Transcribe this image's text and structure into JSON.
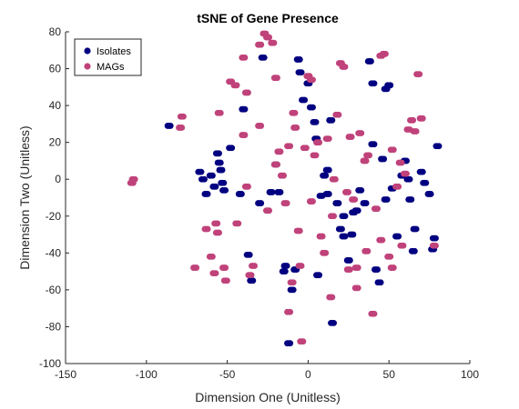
{
  "chart_data": {
    "type": "scatter",
    "title": "tSNE of Gene Presence",
    "xlabel": "Dimension One (Unitless)",
    "ylabel": "Dimension Two (Unitless)",
    "xlim": [
      -150,
      100
    ],
    "ylim": [
      -100,
      80
    ],
    "xticks": [
      -150,
      -100,
      -50,
      0,
      50,
      100
    ],
    "yticks": [
      -100,
      -80,
      -60,
      -40,
      -20,
      0,
      20,
      40,
      60,
      80
    ],
    "xtick_labels": [
      "-150",
      "-100",
      "-50",
      "0",
      "50",
      "100"
    ],
    "ytick_labels": [
      "-100",
      "-80",
      "-60",
      "-40",
      "-20",
      "0",
      "20",
      "40",
      "60",
      "80"
    ],
    "grid": false,
    "legend_position": "top-left",
    "series": [
      {
        "name": "Isolates",
        "color": "#000080",
        "x": [
          -86,
          -67,
          -65,
          -63,
          -60,
          -58,
          -56,
          -55,
          -54,
          -53,
          -52,
          -48,
          -42,
          -40,
          -37,
          -35,
          -28,
          -23,
          -18,
          -15,
          -12,
          -10,
          -8,
          -6,
          -3,
          0,
          2,
          4,
          5,
          8,
          10,
          12,
          15,
          18,
          20,
          22,
          25,
          27,
          30,
          35,
          38,
          40,
          42,
          44,
          48,
          50,
          52,
          55,
          58,
          60,
          62,
          63,
          65,
          70,
          72,
          75,
          77,
          78,
          80,
          -30,
          -20,
          -14,
          12,
          22,
          40,
          48,
          28,
          6,
          -5,
          14,
          32,
          46,
          66
        ],
        "y": [
          29,
          4,
          0,
          -8,
          2,
          -4,
          14,
          9,
          5,
          -2,
          -6,
          17,
          -8,
          38,
          -41,
          -55,
          66,
          -7,
          -7,
          -50,
          -89,
          -60,
          -49,
          65,
          43,
          52,
          39,
          31,
          22,
          -9,
          2,
          -8,
          -78,
          -13,
          -27,
          -31,
          -44,
          -30,
          -17,
          -13,
          64,
          19,
          -49,
          -56,
          49,
          51,
          -5,
          -31,
          2,
          10,
          0,
          -11,
          -39,
          4,
          -2,
          -8,
          -38,
          -32,
          18,
          -13,
          8,
          -47,
          5,
          -20,
          52,
          -11,
          -18,
          -52,
          58,
          32,
          -6,
          11,
          -27
        ]
      },
      {
        "name": "MAGs",
        "color": "#c0427a",
        "x": [
          -108,
          -109,
          -78,
          -79,
          -70,
          -58,
          -57,
          -56,
          -55,
          -52,
          -51,
          -48,
          -45,
          -40,
          -38,
          -36,
          -34,
          -30,
          -27,
          -25,
          -22,
          -20,
          -18,
          -16,
          -14,
          -12,
          -10,
          -8,
          -6,
          -4,
          -2,
          0,
          2,
          4,
          6,
          8,
          10,
          12,
          14,
          16,
          18,
          20,
          22,
          24,
          26,
          28,
          30,
          32,
          35,
          37,
          40,
          42,
          45,
          47,
          50,
          52,
          55,
          57,
          60,
          62,
          64,
          66,
          68,
          70,
          -63,
          -60,
          -44,
          -38,
          -30,
          -25,
          -20,
          -12,
          -9,
          -5,
          15,
          30,
          52,
          58,
          78,
          45,
          25,
          -40,
          36,
          2
        ],
        "y": [
          0,
          -2,
          34,
          28,
          -48,
          -51,
          -24,
          -29,
          36,
          -48,
          -55,
          53,
          51,
          66,
          47,
          -52,
          -47,
          73,
          79,
          77,
          74,
          55,
          15,
          2,
          -13,
          -72,
          -56,
          28,
          -28,
          -88,
          17,
          56,
          54,
          13,
          20,
          -31,
          -40,
          22,
          -64,
          0,
          35,
          63,
          61,
          -7,
          23,
          -11,
          -59,
          25,
          10,
          13,
          -73,
          -16,
          67,
          68,
          -42,
          -48,
          -4,
          9,
          3,
          27,
          32,
          26,
          57,
          33,
          -27,
          -42,
          -24,
          -4,
          29,
          -17,
          8,
          18,
          36,
          -47,
          -20,
          -48,
          16,
          -36,
          -36,
          -33,
          -49,
          24,
          -39,
          -12
        ]
      }
    ]
  }
}
